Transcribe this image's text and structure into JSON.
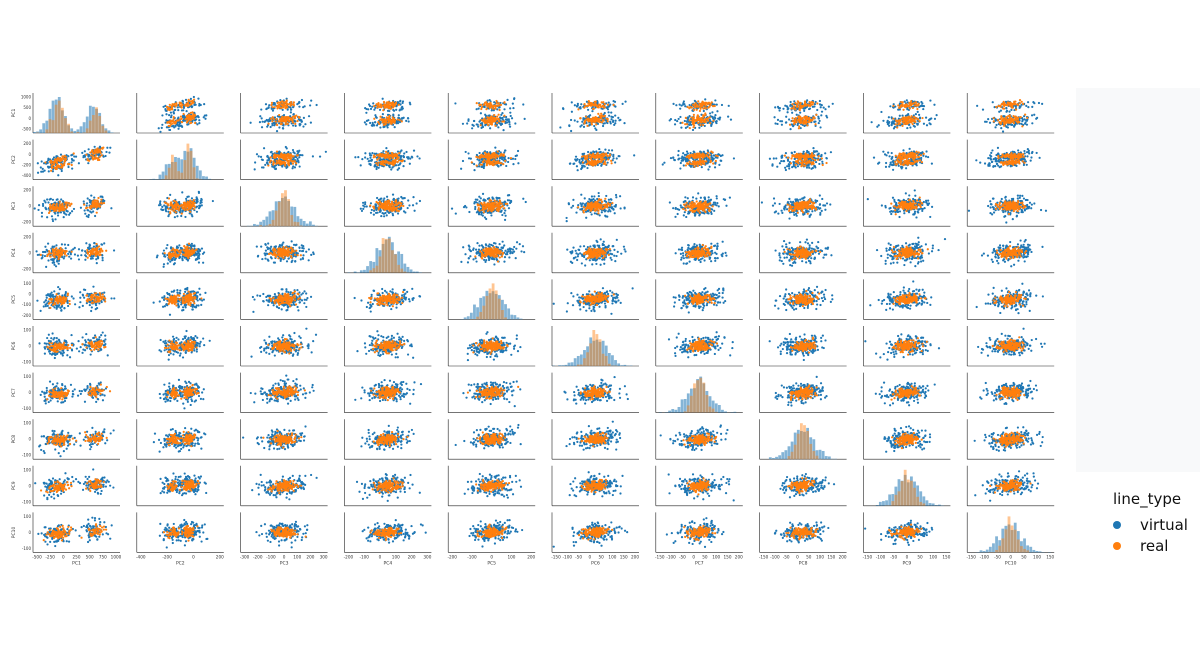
{
  "chart_data": {
    "type": "scatter",
    "layout": "pairplot",
    "hue": "line_type",
    "variables": [
      "PC1",
      "PC2",
      "PC3",
      "PC4",
      "PC5",
      "PC6",
      "PC7",
      "PC8",
      "PC9",
      "PC10"
    ],
    "diagonal": "histogram",
    "ranges": {
      "PC1": [
        -600,
        1100
      ],
      "PC2": [
        -500,
        350
      ],
      "PC3": [
        -300,
        350
      ],
      "PC4": [
        -230,
        300
      ],
      "PC5": [
        -210,
        230
      ],
      "PC6": [
        -170,
        210
      ],
      "PC7": [
        -170,
        210
      ],
      "PC8": [
        -170,
        210
      ],
      "PC9": [
        -170,
        170
      ],
      "PC10": [
        -200,
        150
      ]
    },
    "x_ticks": {
      "PC1": [
        "-500",
        "-250",
        "0",
        "250",
        "500",
        "750",
        "1000"
      ],
      "PC2": [
        "-400",
        "-200",
        "0",
        "200"
      ],
      "PC3": [
        "-300",
        "-200",
        "-100",
        "0",
        "100",
        "200",
        "300"
      ],
      "PC4": [
        "-200",
        "-100",
        "0",
        "100",
        "200",
        "300"
      ],
      "PC5": [
        "-200",
        "-100",
        "0",
        "100",
        "200"
      ],
      "PC6": [
        "-150",
        "-100",
        "-50",
        "0",
        "50",
        "100",
        "150",
        "200"
      ],
      "PC7": [
        "-150",
        "-100",
        "-50",
        "0",
        "50",
        "100",
        "150",
        "200"
      ],
      "PC8": [
        "-150",
        "-100",
        "-50",
        "0",
        "50",
        "100",
        "150",
        "200"
      ],
      "PC9": [
        "-150",
        "-100",
        "-50",
        "0",
        "50",
        "100",
        "150"
      ],
      "PC10": [
        "-150",
        "-100",
        "-50",
        "0",
        "50",
        "100",
        "150"
      ]
    },
    "y_ticks": {
      "PC1": [
        "1000",
        "500",
        "0",
        "-500"
      ],
      "PC2": [
        "200",
        "0",
        "-200",
        "-400"
      ],
      "PC3": [
        "200",
        "0",
        "-200"
      ],
      "PC4": [
        "200",
        "0",
        "-200"
      ],
      "PC5": [
        "100",
        "0",
        "-100",
        "-200"
      ],
      "PC6": [
        "100",
        "0",
        "-100"
      ],
      "PC7": [
        "100",
        "0",
        "-100"
      ],
      "PC8": [
        "100",
        "0",
        "-100"
      ],
      "PC9": [
        "100",
        "0",
        "-100"
      ],
      "PC10": [
        "100",
        "0",
        "-100"
      ]
    },
    "series": [
      {
        "name": "virtual",
        "color": "#1f77b4"
      },
      {
        "name": "real",
        "color": "#ff7f0e"
      }
    ],
    "legend": {
      "title": "line_type",
      "placement": "right"
    }
  }
}
